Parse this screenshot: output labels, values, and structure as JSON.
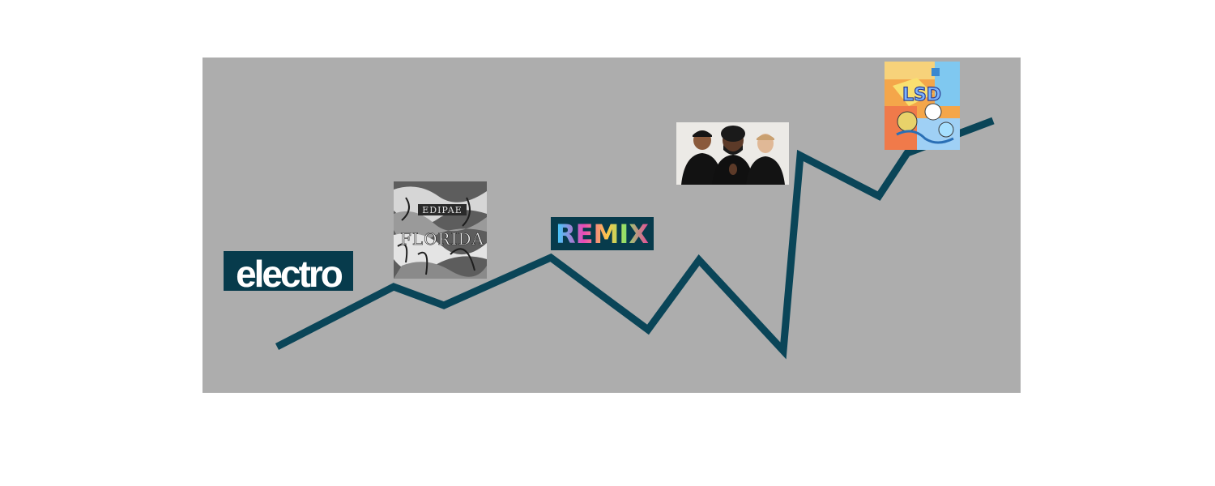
{
  "colors": {
    "background": "#ffffff",
    "canvas": "#adadad",
    "trend_line": "#0a4558",
    "logo_panel": "#073b4c"
  },
  "logos": {
    "electro": "electro",
    "remix": "REMIX"
  },
  "images": {
    "florida_cover": {
      "icon": "album-cover-image",
      "lettering": "FLORIDA"
    },
    "band_photo": {
      "icon": "group-photo-image"
    },
    "lsd_cover": {
      "icon": "album-cover-image",
      "lettering": "LSD"
    }
  }
}
